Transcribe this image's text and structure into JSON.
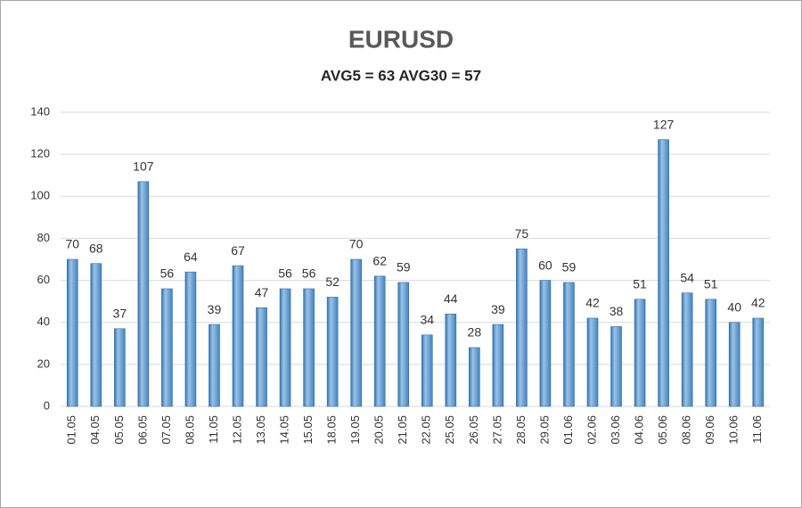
{
  "chart_data": {
    "type": "bar",
    "title": "EURUSD",
    "subtitle": "AVG5 = 63 AVG30 = 57",
    "categories": [
      "01.05",
      "04.05",
      "05.05",
      "06.05",
      "07.05",
      "08.05",
      "11.05",
      "12.05",
      "13.05",
      "14.05",
      "15.05",
      "18.05",
      "19.05",
      "20.05",
      "21.05",
      "22.05",
      "25.05",
      "26.05",
      "27.05",
      "28.05",
      "29.05",
      "01.06",
      "02.06",
      "03.06",
      "04.06",
      "05.06",
      "08.06",
      "09.06",
      "10.06",
      "11.06"
    ],
    "values": [
      70,
      68,
      37,
      107,
      56,
      64,
      39,
      67,
      47,
      56,
      56,
      52,
      70,
      62,
      59,
      34,
      44,
      28,
      39,
      75,
      60,
      59,
      42,
      38,
      51,
      127,
      54,
      51,
      40,
      42
    ],
    "color": "#5b9bd5",
    "ylim": [
      0,
      140
    ],
    "yticks": [
      0,
      20,
      40,
      60,
      80,
      100,
      120,
      140
    ],
    "grid": true
  }
}
